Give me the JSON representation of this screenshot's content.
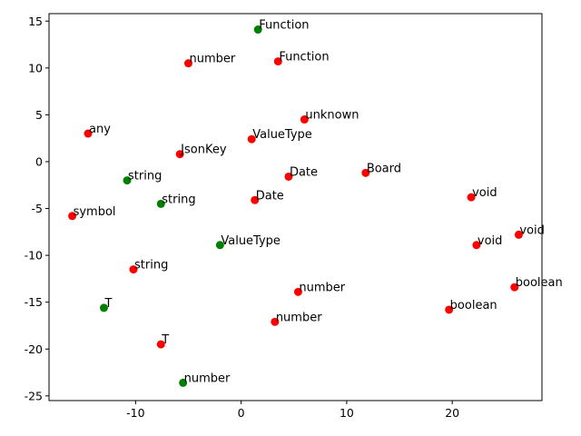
{
  "chart_data": {
    "type": "scatter",
    "title": "",
    "xlabel": "",
    "ylabel": "",
    "xlim": [
      -18.2,
      28.5
    ],
    "ylim": [
      -25.5,
      15.8
    ],
    "grid": false,
    "x_ticks": [
      -10,
      0,
      10,
      20
    ],
    "y_ticks": [
      -25,
      -20,
      -15,
      -10,
      -5,
      0,
      5,
      10,
      15
    ],
    "colors": {
      "red": "#ff0000",
      "green": "#008000"
    },
    "points": [
      {
        "x": 1.6,
        "y": 14.1,
        "label": "Function",
        "color": "green"
      },
      {
        "x": 3.5,
        "y": 10.7,
        "label": "Function",
        "color": "red"
      },
      {
        "x": -5.0,
        "y": 10.5,
        "label": "number",
        "color": "red"
      },
      {
        "x": 6.0,
        "y": 4.5,
        "label": "unknown",
        "color": "red"
      },
      {
        "x": -14.5,
        "y": 3.0,
        "label": "any",
        "color": "red"
      },
      {
        "x": 1.0,
        "y": 2.4,
        "label": "ValueType",
        "color": "red"
      },
      {
        "x": -5.8,
        "y": 0.8,
        "label": "JsonKey",
        "color": "red"
      },
      {
        "x": 11.8,
        "y": -1.2,
        "label": "Board",
        "color": "red"
      },
      {
        "x": 4.5,
        "y": -1.6,
        "label": "Date",
        "color": "red"
      },
      {
        "x": -10.8,
        "y": -2.0,
        "label": "string",
        "color": "green"
      },
      {
        "x": 21.8,
        "y": -3.8,
        "label": "void",
        "color": "red"
      },
      {
        "x": 1.3,
        "y": -4.1,
        "label": "Date",
        "color": "red"
      },
      {
        "x": -7.6,
        "y": -4.5,
        "label": "string",
        "color": "green"
      },
      {
        "x": -16.0,
        "y": -5.8,
        "label": "symbol",
        "color": "red"
      },
      {
        "x": 26.3,
        "y": -7.8,
        "label": "void",
        "color": "red"
      },
      {
        "x": -2.0,
        "y": -8.9,
        "label": "ValueType",
        "color": "green"
      },
      {
        "x": 22.3,
        "y": -8.9,
        "label": "void",
        "color": "red"
      },
      {
        "x": -10.2,
        "y": -11.5,
        "label": "string",
        "color": "red"
      },
      {
        "x": 25.9,
        "y": -13.4,
        "label": "boolean",
        "color": "red"
      },
      {
        "x": 5.4,
        "y": -13.9,
        "label": "number",
        "color": "red"
      },
      {
        "x": -13.0,
        "y": -15.6,
        "label": "T",
        "color": "green"
      },
      {
        "x": 19.7,
        "y": -15.8,
        "label": "boolean",
        "color": "red"
      },
      {
        "x": 3.2,
        "y": -17.1,
        "label": "number",
        "color": "red"
      },
      {
        "x": -7.6,
        "y": -19.5,
        "label": "T",
        "color": "red"
      },
      {
        "x": -5.5,
        "y": -23.6,
        "label": "number",
        "color": "green"
      }
    ]
  }
}
